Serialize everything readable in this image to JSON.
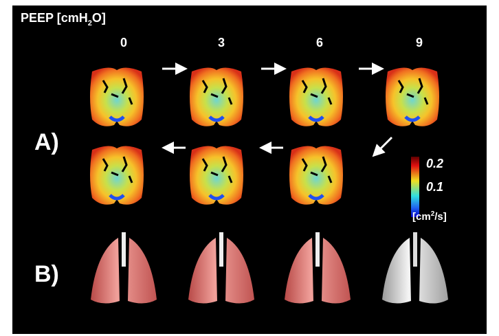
{
  "header": {
    "title_main": "PEEP [cmH",
    "title_sub": "2",
    "title_end": "O]"
  },
  "columns": [
    "0",
    "3",
    "6",
    "9"
  ],
  "panels": {
    "a": "A)",
    "b": "B)"
  },
  "colorbar": {
    "high": "0.2",
    "mid": "0.1",
    "unit_main": "[cm",
    "unit_sup": "2",
    "unit_end": "/s]"
  }
}
